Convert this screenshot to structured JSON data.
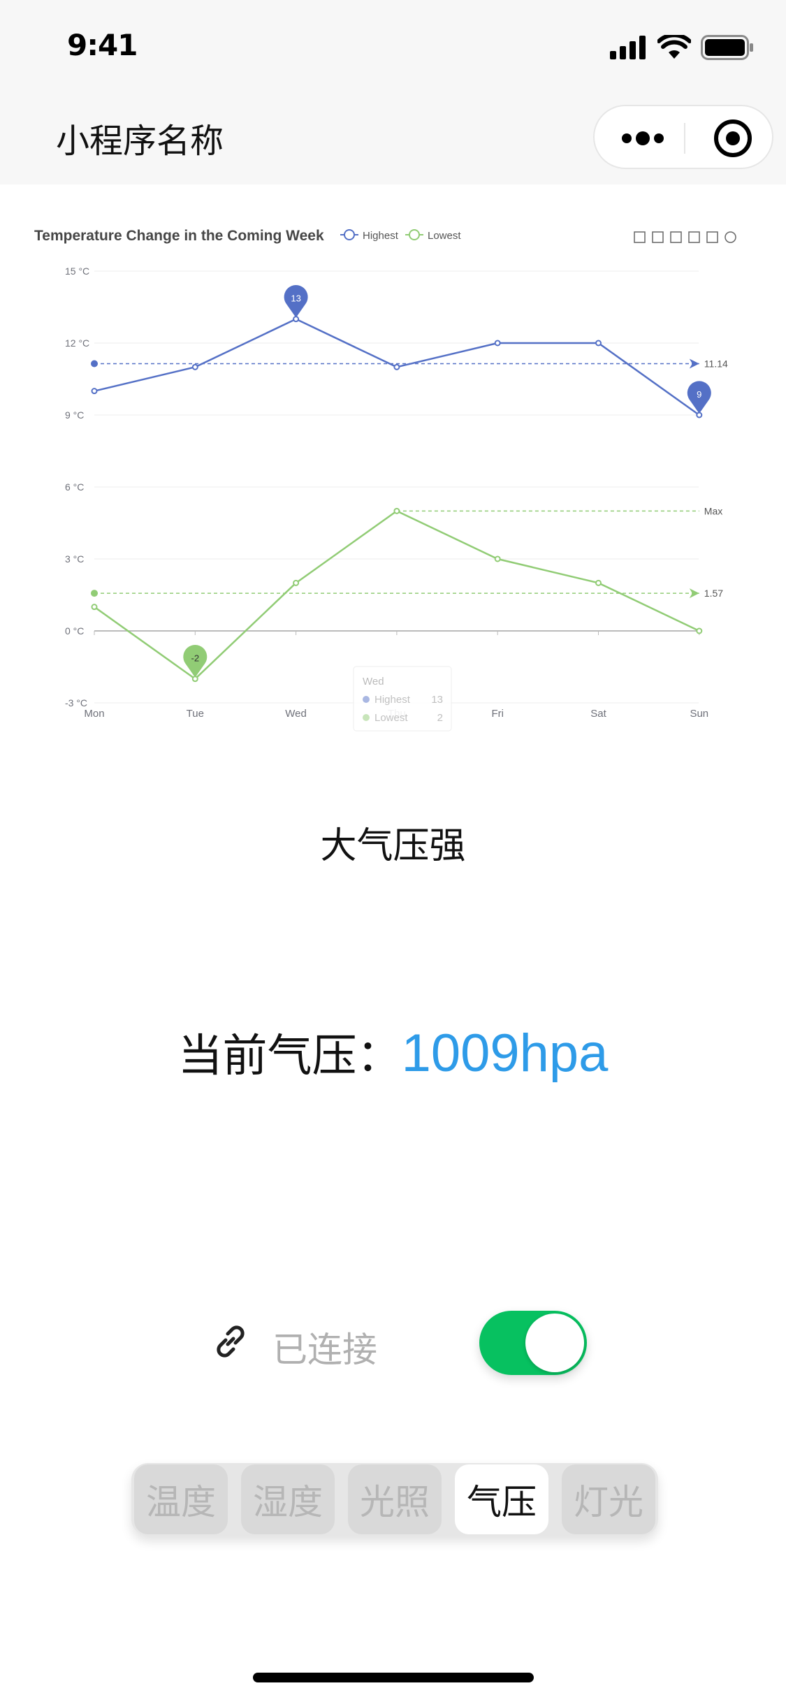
{
  "status_bar": {
    "time": "9:41"
  },
  "nav": {
    "title": "小程序名称"
  },
  "chart_data": {
    "type": "line",
    "title": "Temperature Change in the Coming Week",
    "categories": [
      "Mon",
      "Tue",
      "Wed",
      "Thu",
      "Fri",
      "Sat",
      "Sun"
    ],
    "series": [
      {
        "name": "Highest",
        "values": [
          10,
          11,
          13,
          11,
          12,
          12,
          9
        ],
        "color": "#5470c6"
      },
      {
        "name": "Lowest",
        "values": [
          1,
          -2,
          2,
          5,
          3,
          2,
          0
        ],
        "color": "#91cc75"
      }
    ],
    "yticks": [
      "15 °C",
      "12 °C",
      "9 °C",
      "6 °C",
      "3 °C",
      "0 °C",
      "-3 °C"
    ],
    "ylim": [
      -3,
      15
    ],
    "mark_points": [
      {
        "series": "Highest",
        "category": "Wed",
        "value": 13,
        "label": "13"
      },
      {
        "series": "Highest",
        "category": "Sun",
        "value": 9,
        "label": "9"
      },
      {
        "series": "Lowest",
        "category": "Tue",
        "value": -2,
        "label": "-2"
      }
    ],
    "mark_lines": [
      {
        "series": "Highest",
        "value": 11.14,
        "label": "11.14"
      },
      {
        "series": "Lowest",
        "value": 1.57,
        "label": "1.57"
      },
      {
        "series": "Lowest",
        "value": 5,
        "label": "Max"
      }
    ],
    "tooltip": {
      "title": "Wed",
      "rows": [
        {
          "name": "Highest",
          "value": "13"
        },
        {
          "name": "Lowest",
          "value": "2"
        }
      ]
    }
  },
  "section": {
    "title": "大气压强"
  },
  "reading": {
    "label": "当前气压：",
    "value": "1009hpa"
  },
  "connection": {
    "label": "已连接",
    "toggle_on": true
  },
  "tabs": [
    {
      "label": "温度",
      "active": false
    },
    {
      "label": "湿度",
      "active": false
    },
    {
      "label": "光照",
      "active": false
    },
    {
      "label": "气压",
      "active": true
    },
    {
      "label": "灯光",
      "active": false
    }
  ],
  "colors": {
    "accent": "#2e9be8",
    "toggle": "#07c160",
    "highest": "#5470c6",
    "lowest": "#91cc75"
  }
}
